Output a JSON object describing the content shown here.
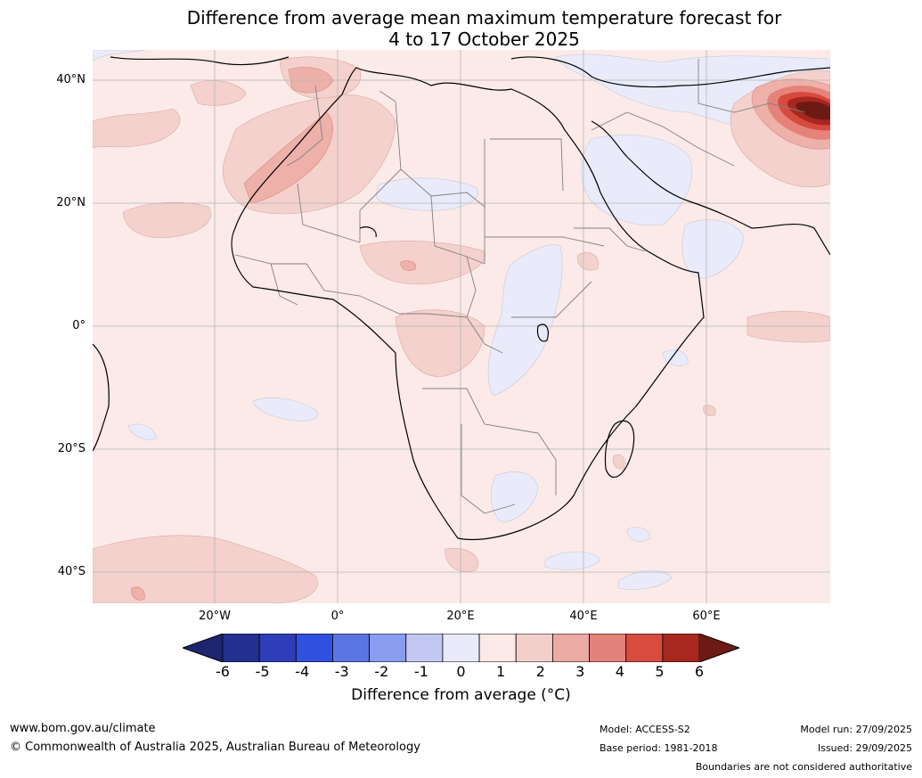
{
  "title": {
    "line1": "Difference from average mean maximum temperature forecast for",
    "line2": "4 to 17 October 2025"
  },
  "map": {
    "lat_labels": [
      "40°N",
      "20°N",
      "0°",
      "20°S",
      "40°S"
    ],
    "lon_labels": [
      "20°W",
      "0°",
      "20°E",
      "40°E",
      "60°E"
    ],
    "colors": {
      "ocean_base": "#fbeae8",
      "above_1_2": "#f4d1cd",
      "above_2_3": "#eeb1aa",
      "above_3_4": "#e5837a",
      "above_4_5": "#d74a3f",
      "above_5_6": "#a8281f",
      "above_6": "#6e1a14",
      "below_0_1": "#e9ebfa",
      "coastline": "#000000",
      "borders": "#808080",
      "gridline": "#b5b5b5"
    }
  },
  "colorbar": {
    "tick_labels": [
      "-6",
      "-5",
      "-4",
      "-3",
      "-2",
      "-1",
      "0",
      "1",
      "2",
      "3",
      "4",
      "5",
      "6"
    ],
    "colors": [
      "#24308f",
      "#2e3eb8",
      "#3051e0",
      "#5a75e3",
      "#8a9ced",
      "#c3c8f3",
      "#eaebfa",
      "#fbeae8",
      "#f3cfcb",
      "#ebaaa3",
      "#e3827a",
      "#d84c40",
      "#a8281f"
    ],
    "min_color": "#1b2570",
    "max_color": "#6e1a14",
    "label": "Difference from average (°C)"
  },
  "footer": {
    "website": "www.bom.gov.au/climate",
    "copyright": "© Commonwealth of Australia 2025, Australian Bureau of Meteorology",
    "model": "Model: ACCESS-S2",
    "base_period": "Base period: 1981-2018",
    "model_run": "Model run: 27/09/2025",
    "issued": "Issued: 29/09/2025",
    "disclaimer": "Boundaries are not considered authoritative"
  }
}
